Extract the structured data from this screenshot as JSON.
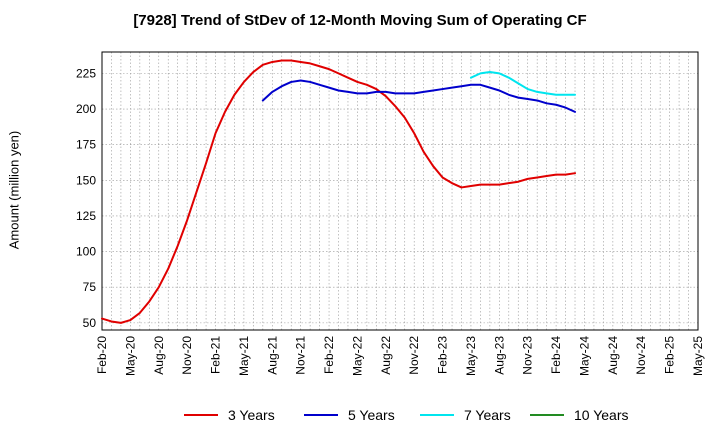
{
  "chart_data": {
    "type": "line",
    "title": "[7928]  Trend of StDev of 12-Month Moving Sum of Operating CF",
    "xlabel": "",
    "ylabel": "Amount (million yen)",
    "x_ticks": [
      "Feb-20",
      "May-20",
      "Aug-20",
      "Nov-20",
      "Feb-21",
      "May-21",
      "Aug-21",
      "Nov-21",
      "Feb-22",
      "May-22",
      "Aug-22",
      "Nov-22",
      "Feb-23",
      "May-23",
      "Aug-23",
      "Nov-23",
      "Feb-24",
      "May-24",
      "Aug-24",
      "Nov-24",
      "Feb-25",
      "May-25"
    ],
    "y_ticks": [
      50,
      75,
      100,
      125,
      150,
      175,
      200,
      225
    ],
    "ylim": [
      45,
      240
    ],
    "xlim": [
      "Feb-20",
      "May-25"
    ],
    "grid": true,
    "legend_position": "bottom",
    "series": [
      {
        "name": "3 Years",
        "color": "#e00000",
        "points": [
          [
            "Feb-20",
            53
          ],
          [
            "Mar-20",
            51
          ],
          [
            "Apr-20",
            50
          ],
          [
            "May-20",
            52
          ],
          [
            "Jun-20",
            57
          ],
          [
            "Jul-20",
            65
          ],
          [
            "Aug-20",
            75
          ],
          [
            "Sep-20",
            88
          ],
          [
            "Oct-20",
            104
          ],
          [
            "Nov-20",
            122
          ],
          [
            "Dec-20",
            142
          ],
          [
            "Jan-21",
            162
          ],
          [
            "Feb-21",
            183
          ],
          [
            "Mar-21",
            198
          ],
          [
            "Apr-21",
            210
          ],
          [
            "May-21",
            219
          ],
          [
            "Jun-21",
            226
          ],
          [
            "Jul-21",
            231
          ],
          [
            "Aug-21",
            233
          ],
          [
            "Sep-21",
            234
          ],
          [
            "Oct-21",
            234
          ],
          [
            "Nov-21",
            233
          ],
          [
            "Dec-21",
            232
          ],
          [
            "Jan-22",
            230
          ],
          [
            "Feb-22",
            228
          ],
          [
            "Mar-22",
            225
          ],
          [
            "Apr-22",
            222
          ],
          [
            "May-22",
            219
          ],
          [
            "Jun-22",
            217
          ],
          [
            "Jul-22",
            214
          ],
          [
            "Aug-22",
            209
          ],
          [
            "Sep-22",
            202
          ],
          [
            "Oct-22",
            194
          ],
          [
            "Nov-22",
            183
          ],
          [
            "Dec-22",
            170
          ],
          [
            "Jan-23",
            160
          ],
          [
            "Feb-23",
            152
          ],
          [
            "Mar-23",
            148
          ],
          [
            "Apr-23",
            145
          ],
          [
            "May-23",
            146
          ],
          [
            "Jun-23",
            147
          ],
          [
            "Jul-23",
            147
          ],
          [
            "Aug-23",
            147
          ],
          [
            "Sep-23",
            148
          ],
          [
            "Oct-23",
            149
          ],
          [
            "Nov-23",
            151
          ],
          [
            "Dec-23",
            152
          ],
          [
            "Jan-24",
            153
          ],
          [
            "Feb-24",
            154
          ],
          [
            "Mar-24",
            154
          ],
          [
            "Apr-24",
            155
          ]
        ]
      },
      {
        "name": "5 Years",
        "color": "#0000cc",
        "points": [
          [
            "Jul-21",
            206
          ],
          [
            "Aug-21",
            212
          ],
          [
            "Sep-21",
            216
          ],
          [
            "Oct-21",
            219
          ],
          [
            "Nov-21",
            220
          ],
          [
            "Dec-21",
            219
          ],
          [
            "Jan-22",
            217
          ],
          [
            "Feb-22",
            215
          ],
          [
            "Mar-22",
            213
          ],
          [
            "Apr-22",
            212
          ],
          [
            "May-22",
            211
          ],
          [
            "Jun-22",
            211
          ],
          [
            "Jul-22",
            212
          ],
          [
            "Aug-22",
            212
          ],
          [
            "Sep-22",
            211
          ],
          [
            "Oct-22",
            211
          ],
          [
            "Nov-22",
            211
          ],
          [
            "Dec-22",
            212
          ],
          [
            "Jan-23",
            213
          ],
          [
            "Feb-23",
            214
          ],
          [
            "Mar-23",
            215
          ],
          [
            "Apr-23",
            216
          ],
          [
            "May-23",
            217
          ],
          [
            "Jun-23",
            217
          ],
          [
            "Jul-23",
            215
          ],
          [
            "Aug-23",
            213
          ],
          [
            "Sep-23",
            210
          ],
          [
            "Oct-23",
            208
          ],
          [
            "Nov-23",
            207
          ],
          [
            "Dec-23",
            206
          ],
          [
            "Jan-24",
            204
          ],
          [
            "Feb-24",
            203
          ],
          [
            "Mar-24",
            201
          ],
          [
            "Apr-24",
            198
          ]
        ]
      },
      {
        "name": "7 Years",
        "color": "#00e5ee",
        "points": [
          [
            "May-23",
            222
          ],
          [
            "Jun-23",
            225
          ],
          [
            "Jul-23",
            226
          ],
          [
            "Aug-23",
            225
          ],
          [
            "Sep-23",
            222
          ],
          [
            "Oct-23",
            218
          ],
          [
            "Nov-23",
            214
          ],
          [
            "Dec-23",
            212
          ],
          [
            "Jan-24",
            211
          ],
          [
            "Feb-24",
            210
          ],
          [
            "Mar-24",
            210
          ],
          [
            "Apr-24",
            210
          ]
        ]
      },
      {
        "name": "10 Years",
        "color": "#228b22",
        "points": []
      }
    ]
  }
}
